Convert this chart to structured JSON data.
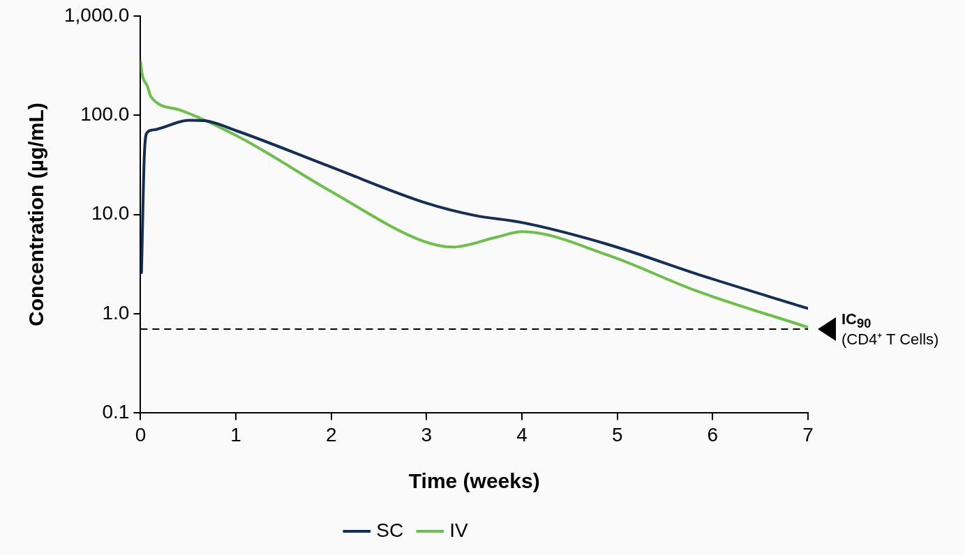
{
  "chart_data": {
    "type": "line",
    "xlabel": "Time (weeks)",
    "ylabel": "Concentration (µg/mL)",
    "xlim": [
      0,
      7
    ],
    "xticks": [
      0,
      1,
      2,
      3,
      4,
      5,
      6,
      7
    ],
    "ylim": [
      0.1,
      1000
    ],
    "yticks": [
      {
        "value": 0.1,
        "label": "0.1"
      },
      {
        "value": 1,
        "label": "1.0"
      },
      {
        "value": 10,
        "label": "10.0"
      },
      {
        "value": 100,
        "label": "100.0"
      },
      {
        "value": 1000,
        "label": "1,000.0"
      }
    ],
    "log": "y",
    "grid": false,
    "legend": "bottom",
    "marker": "none",
    "line_style": "solid",
    "series": [
      {
        "name": "SC",
        "color": "#132f57",
        "x": [
          0.01,
          0.04,
          0.07,
          0.13,
          0.51,
          0.67,
          1.0,
          2.0,
          3.0,
          3.5,
          4.0,
          4.9,
          5.9,
          7.0
        ],
        "values": [
          2.6,
          40,
          67,
          71,
          89,
          88,
          70,
          30,
          13,
          9.8,
          8.3,
          5.0,
          2.4,
          1.13
        ]
      },
      {
        "name": "IV",
        "color": "#6cc04a",
        "x": [
          0,
          0.02,
          0.07,
          0.11,
          0.41,
          1.05,
          2.0,
          2.96,
          3.27,
          3.73,
          4.0,
          4.9,
          5.83,
          7.0
        ],
        "values": [
          345,
          250,
          198,
          153,
          113,
          59,
          17,
          5.4,
          4.7,
          5.9,
          6.7,
          3.9,
          1.7,
          0.73
        ]
      }
    ],
    "ref_lines": [
      {
        "axis": "y",
        "value": 0.7,
        "label": "IC$_{90}$",
        "color": "#000000",
        "line_style": "dashed"
      }
    ],
    "annotations": [
      "(CD4⁺ T Cells)"
    ]
  }
}
